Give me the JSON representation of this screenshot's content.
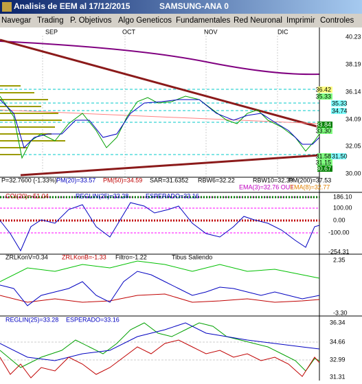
{
  "window": {
    "title": "Analisis de EEM al 17/12/2015",
    "subtitle": "SAMSUNG-ANA 0"
  },
  "menu": [
    "Navegar",
    "Trading",
    "P. Objetivos",
    "Algo Geneticos",
    "Fundamentales",
    "Red Neuronal",
    "Imprimir",
    "Controles"
  ],
  "price_panel": {
    "months": [
      "SEP",
      "OCT",
      "NOV",
      "DIC"
    ],
    "axis": [
      "40.23",
      "38.19",
      "36.14",
      "34.09",
      "32.05",
      "30.00"
    ],
    "levels": [
      "36.42",
      "35.33",
      "35.33",
      "34.74",
      "33.84",
      "33.30",
      "31.58",
      "31.50",
      "31.15",
      "30.67"
    ],
    "labels": [
      "P=32.7600 (-1.33%)",
      "PM(20)=33.57",
      "PM(50)=34.59",
      "SAR=31.6352",
      "RBW6=32.22",
      "RBW10=32.39",
      "PM(200)=37.53",
      "EMA(3)=32.76 OUT",
      "EMA(8)=32.77"
    ]
  },
  "coi_panel": {
    "labels": [
      "COI(20)=-51.04",
      "REGLIN(25)=33.28",
      "ESPERADO=33.16"
    ],
    "axis": [
      "186.10",
      "100.00",
      "0.00",
      "-100.00",
      "-254.31"
    ]
  },
  "zrl_panel": {
    "labels": [
      "ZRLKonV=0.34",
      "ZRLKonB=-1.33",
      "Filtro=-1.22",
      "Tibus Saliendo"
    ],
    "axis": [
      "2.35",
      "-3.30"
    ]
  },
  "reglin_panel": {
    "labels": [
      "REGLIN(25)=33.28",
      "ESPERADO=33.16"
    ],
    "axis": [
      "36.34",
      "34.66",
      "32.99",
      "31.31"
    ]
  }
}
